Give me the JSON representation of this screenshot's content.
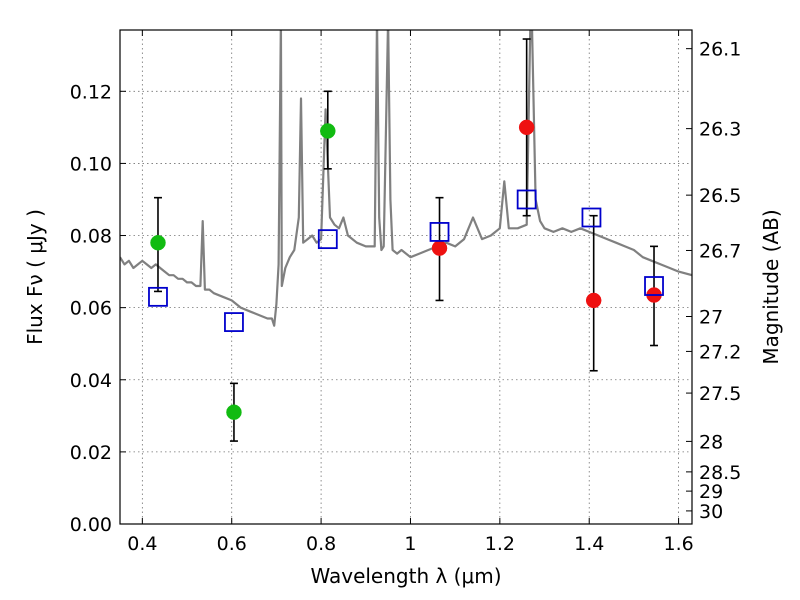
{
  "chart_data": {
    "type": "scatter",
    "xlabel": "Wavelength  λ (μm)",
    "ylabel": "Flux  Fν  ( μJy )",
    "y2label": "Magnitude (AB)",
    "xlim": [
      0.35,
      1.63
    ],
    "ylim": [
      0.0,
      0.137
    ],
    "grid": true,
    "x_ticks": [
      0.4,
      0.6,
      0.8,
      1.0,
      1.2,
      1.4,
      1.6
    ],
    "x_tick_labels": [
      "0.4",
      "0.6",
      "0.8",
      "1",
      "1.2",
      "1.4",
      "1.6"
    ],
    "y_ticks": [
      0.0,
      0.02,
      0.04,
      0.06,
      0.08,
      0.1,
      0.12
    ],
    "y_tick_labels": [
      "0.00",
      "0.02",
      "0.04",
      "0.06",
      "0.08",
      "0.10",
      "0.12"
    ],
    "y2_ticks": [
      26.1,
      26.3,
      26.5,
      26.7,
      27,
      27.2,
      27.5,
      28,
      28.5,
      29,
      30
    ],
    "y2_tick_labels": [
      "26.1",
      "26.3",
      "26.5",
      "26.7",
      "27",
      "27.2",
      "27.5",
      "28",
      "28.5",
      "29",
      "30"
    ],
    "colors": {
      "model_spectrum": "#808080",
      "green_points": "#11bb11",
      "red_points": "#ee1111",
      "model_squares": "#0000cc",
      "errorbars": "#000000"
    },
    "series": [
      {
        "style": "line",
        "x": [
          0.35,
          0.36,
          0.37,
          0.38,
          0.39,
          0.4,
          0.41,
          0.42,
          0.43,
          0.44,
          0.45,
          0.46,
          0.47,
          0.48,
          0.49,
          0.5,
          0.51,
          0.52,
          0.53,
          0.535,
          0.54,
          0.55,
          0.56,
          0.58,
          0.6,
          0.62,
          0.64,
          0.66,
          0.68,
          0.69,
          0.695,
          0.7,
          0.705,
          0.71,
          0.712,
          0.72,
          0.73,
          0.74,
          0.75,
          0.755,
          0.76,
          0.77,
          0.78,
          0.79,
          0.8,
          0.81,
          0.82,
          0.83,
          0.84,
          0.85,
          0.86,
          0.87,
          0.88,
          0.9,
          0.92,
          0.925,
          0.93,
          0.935,
          0.94,
          0.95,
          0.955,
          0.96,
          0.97,
          0.98,
          1.0,
          1.02,
          1.04,
          1.06,
          1.08,
          1.1,
          1.12,
          1.14,
          1.16,
          1.18,
          1.2,
          1.21,
          1.22,
          1.24,
          1.26,
          1.27,
          1.28,
          1.29,
          1.3,
          1.32,
          1.34,
          1.36,
          1.38,
          1.4,
          1.42,
          1.44,
          1.46,
          1.48,
          1.5,
          1.52,
          1.54,
          1.56,
          1.58,
          1.6,
          1.63
        ],
        "y": [
          0.074,
          0.072,
          0.073,
          0.071,
          0.072,
          0.073,
          0.072,
          0.071,
          0.072,
          0.071,
          0.07,
          0.069,
          0.069,
          0.068,
          0.068,
          0.067,
          0.067,
          0.066,
          0.066,
          0.084,
          0.065,
          0.065,
          0.064,
          0.063,
          0.062,
          0.06,
          0.059,
          0.058,
          0.057,
          0.057,
          0.055,
          0.061,
          0.072,
          0.14,
          0.066,
          0.071,
          0.074,
          0.076,
          0.085,
          0.118,
          0.078,
          0.079,
          0.08,
          0.078,
          0.079,
          0.115,
          0.085,
          0.083,
          0.082,
          0.085,
          0.08,
          0.079,
          0.078,
          0.077,
          0.077,
          0.14,
          0.085,
          0.076,
          0.077,
          0.14,
          0.09,
          0.076,
          0.075,
          0.076,
          0.074,
          0.075,
          0.076,
          0.077,
          0.078,
          0.077,
          0.079,
          0.085,
          0.079,
          0.08,
          0.082,
          0.095,
          0.082,
          0.082,
          0.083,
          0.15,
          0.09,
          0.084,
          0.082,
          0.081,
          0.082,
          0.081,
          0.082,
          0.081,
          0.08,
          0.079,
          0.078,
          0.077,
          0.076,
          0.074,
          0.073,
          0.072,
          0.071,
          0.07,
          0.069
        ]
      },
      {
        "style": "points",
        "marker": "circle",
        "color": "#11bb11",
        "x": [
          0.435,
          0.605,
          0.815
        ],
        "y": [
          0.078,
          0.031,
          0.109
        ],
        "yerr_low": [
          0.0645,
          0.023,
          0.0985
        ],
        "yerr_high": [
          0.0905,
          0.039,
          0.12
        ]
      },
      {
        "style": "points",
        "marker": "circle",
        "color": "#ee1111",
        "x": [
          1.065,
          1.26,
          1.41,
          1.545
        ],
        "y": [
          0.0765,
          0.11,
          0.062,
          0.0635
        ],
        "yerr_low": [
          0.062,
          0.0855,
          0.0425,
          0.0495
        ],
        "yerr_high": [
          0.0905,
          0.1345,
          0.0855,
          0.077
        ]
      },
      {
        "style": "points",
        "marker": "open-square",
        "color": "#0000cc",
        "x": [
          0.435,
          0.605,
          0.815,
          1.065,
          1.26,
          1.405,
          1.545
        ],
        "y": [
          0.063,
          0.056,
          0.079,
          0.081,
          0.09,
          0.085,
          0.066
        ]
      }
    ]
  }
}
